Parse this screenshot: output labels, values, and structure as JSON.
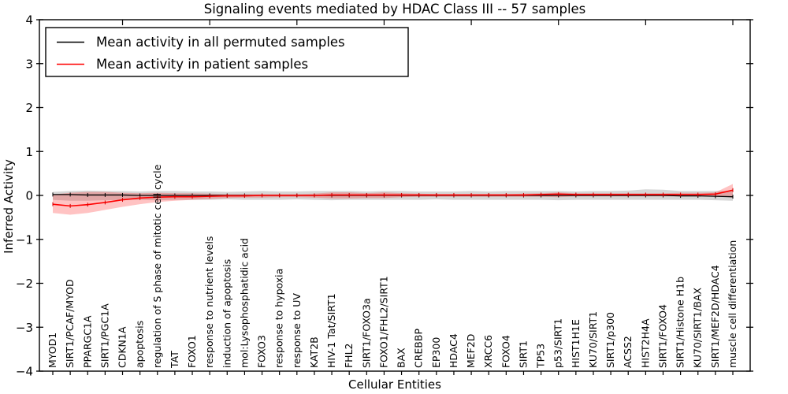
{
  "title": "Signaling events mediated by HDAC Class III -- 57 samples",
  "axes": {
    "ylabel": "Inferred Activity",
    "xlabel": "Cellular Entities",
    "yticks": [
      {
        "label": "4",
        "v": 4
      },
      {
        "label": "3",
        "v": 3
      },
      {
        "label": "2",
        "v": 2
      },
      {
        "label": "1",
        "v": 1
      },
      {
        "label": "0",
        "v": 0
      },
      {
        "label": "−1",
        "v": -1
      },
      {
        "label": "−2",
        "v": -2
      },
      {
        "label": "−3",
        "v": -3
      },
      {
        "label": "−4",
        "v": -4
      }
    ]
  },
  "legend": {
    "entries": [
      {
        "label": "Mean activity in all permuted samples",
        "color": "#000000"
      },
      {
        "label": "Mean activity in patient samples",
        "color": "#ff0000"
      }
    ]
  },
  "colors": {
    "permuted_line": "#000000",
    "permuted_band": "rgba(120,120,120,0.30)",
    "patient_line": "#ff0000",
    "patient_band": "rgba(255,40,40,0.28)",
    "axis": "#000000"
  },
  "chart_data": {
    "type": "line",
    "title": "Signaling events mediated by HDAC Class III -- 57 samples",
    "xlabel": "Cellular Entities",
    "ylabel": "Inferred Activity",
    "ylim": [
      -4,
      4
    ],
    "grid": false,
    "legend_position": "upper left",
    "categories": [
      "MYOD1",
      "SIRT1/PCAF/MYOD",
      "PPARGC1A",
      "SIRT1/PGC1A",
      "CDKN1A",
      "apoptosis",
      "regulation of S phase of mitotic cell cycle",
      "TAT",
      "FOXO1",
      "response to nutrient levels",
      "induction of apoptosis",
      "mol:Lysophosphatidic acid",
      "FOXO3",
      "response to hypoxia",
      "response to UV",
      "KAT2B",
      "HIV-1 Tat/SIRT1",
      "FHL2",
      "SIRT1/FOXO3a",
      "FOXO1/FHL2/SIRT1",
      "BAX",
      "CREBBP",
      "EP300",
      "HDAC4",
      "MEF2D",
      "XRCC6",
      "FOXO4",
      "SIRT1",
      "TP53",
      "p53/SIRT1",
      "HIST1H1E",
      "KU70/SIRT1",
      "SIRT1/p300",
      "ACSS2",
      "HIST2H4A",
      "SIRT1/FOXO4",
      "SIRT1/Histone H1b",
      "KU70/SIRT1/BAX",
      "SIRT1/MEF2D/HDAC4",
      "muscle cell differentiation"
    ],
    "series": [
      {
        "name": "Mean activity in all permuted samples",
        "values": [
          0.02,
          0.02,
          0.01,
          0.01,
          0.01,
          0,
          0,
          0,
          0,
          0,
          0,
          0,
          0,
          0,
          0,
          0,
          0,
          0,
          0,
          0,
          0,
          0,
          0,
          0,
          0,
          0,
          0,
          0,
          0,
          0,
          0,
          0,
          0,
          0,
          0,
          0,
          -0.01,
          -0.01,
          -0.02,
          -0.03
        ],
        "band_upper": [
          0.08,
          0.1,
          0.11,
          0.1,
          0.1,
          0.09,
          0.1,
          0.1,
          0.09,
          0.09,
          0.08,
          0.09,
          0.1,
          0.09,
          0.09,
          0.1,
          0.1,
          0.1,
          0.09,
          0.1,
          0.1,
          0.09,
          0.09,
          0.09,
          0.1,
          0.09,
          0.1,
          0.1,
          0.1,
          0.1,
          0.09,
          0.1,
          0.1,
          0.11,
          0.14,
          0.13,
          0.1,
          0.1,
          0.1,
          0.1
        ],
        "band_lower": [
          -0.1,
          -0.12,
          -0.12,
          -0.11,
          -0.1,
          -0.1,
          -0.11,
          -0.1,
          -0.1,
          -0.1,
          -0.09,
          -0.1,
          -0.1,
          -0.1,
          -0.09,
          -0.1,
          -0.11,
          -0.1,
          -0.1,
          -0.1,
          -0.1,
          -0.1,
          -0.09,
          -0.1,
          -0.1,
          -0.1,
          -0.1,
          -0.1,
          -0.1,
          -0.11,
          -0.1,
          -0.1,
          -0.1,
          -0.1,
          -0.1,
          -0.1,
          -0.1,
          -0.1,
          -0.11,
          -0.12
        ]
      },
      {
        "name": "Mean activity in patient samples",
        "values": [
          -0.2,
          -0.24,
          -0.21,
          -0.16,
          -0.1,
          -0.06,
          -0.04,
          -0.03,
          -0.03,
          -0.02,
          -0.01,
          -0.01,
          0,
          0,
          0,
          0,
          0.01,
          0.01,
          0.01,
          0.01,
          0.01,
          0.01,
          0.01,
          0.01,
          0.01,
          0.01,
          0.01,
          0.01,
          0.02,
          0.03,
          0.02,
          0.02,
          0.02,
          0.02,
          0.02,
          0.02,
          0.02,
          0.02,
          0.03,
          0.12
        ],
        "band_upper": [
          0.02,
          0.06,
          0.08,
          0.08,
          0.06,
          0.05,
          0.06,
          0.05,
          0.05,
          0.04,
          0.03,
          0.03,
          0.03,
          0.03,
          0.03,
          0.04,
          0.07,
          0.07,
          0.05,
          0.07,
          0.05,
          0.04,
          0.03,
          0.03,
          0.03,
          0.03,
          0.03,
          0.04,
          0.05,
          0.07,
          0.05,
          0.05,
          0.05,
          0.05,
          0.05,
          0.05,
          0.06,
          0.06,
          0.07,
          0.26
        ],
        "band_lower": [
          -0.4,
          -0.44,
          -0.4,
          -0.33,
          -0.26,
          -0.2,
          -0.15,
          -0.12,
          -0.1,
          -0.08,
          -0.06,
          -0.05,
          -0.05,
          -0.04,
          -0.04,
          -0.05,
          -0.07,
          -0.07,
          -0.06,
          -0.06,
          -0.04,
          -0.03,
          -0.03,
          -0.03,
          -0.03,
          -0.03,
          -0.03,
          -0.03,
          -0.03,
          -0.04,
          -0.02,
          -0.02,
          -0.02,
          -0.02,
          -0.02,
          -0.02,
          -0.02,
          -0.02,
          -0.01,
          -0.05
        ]
      }
    ]
  }
}
